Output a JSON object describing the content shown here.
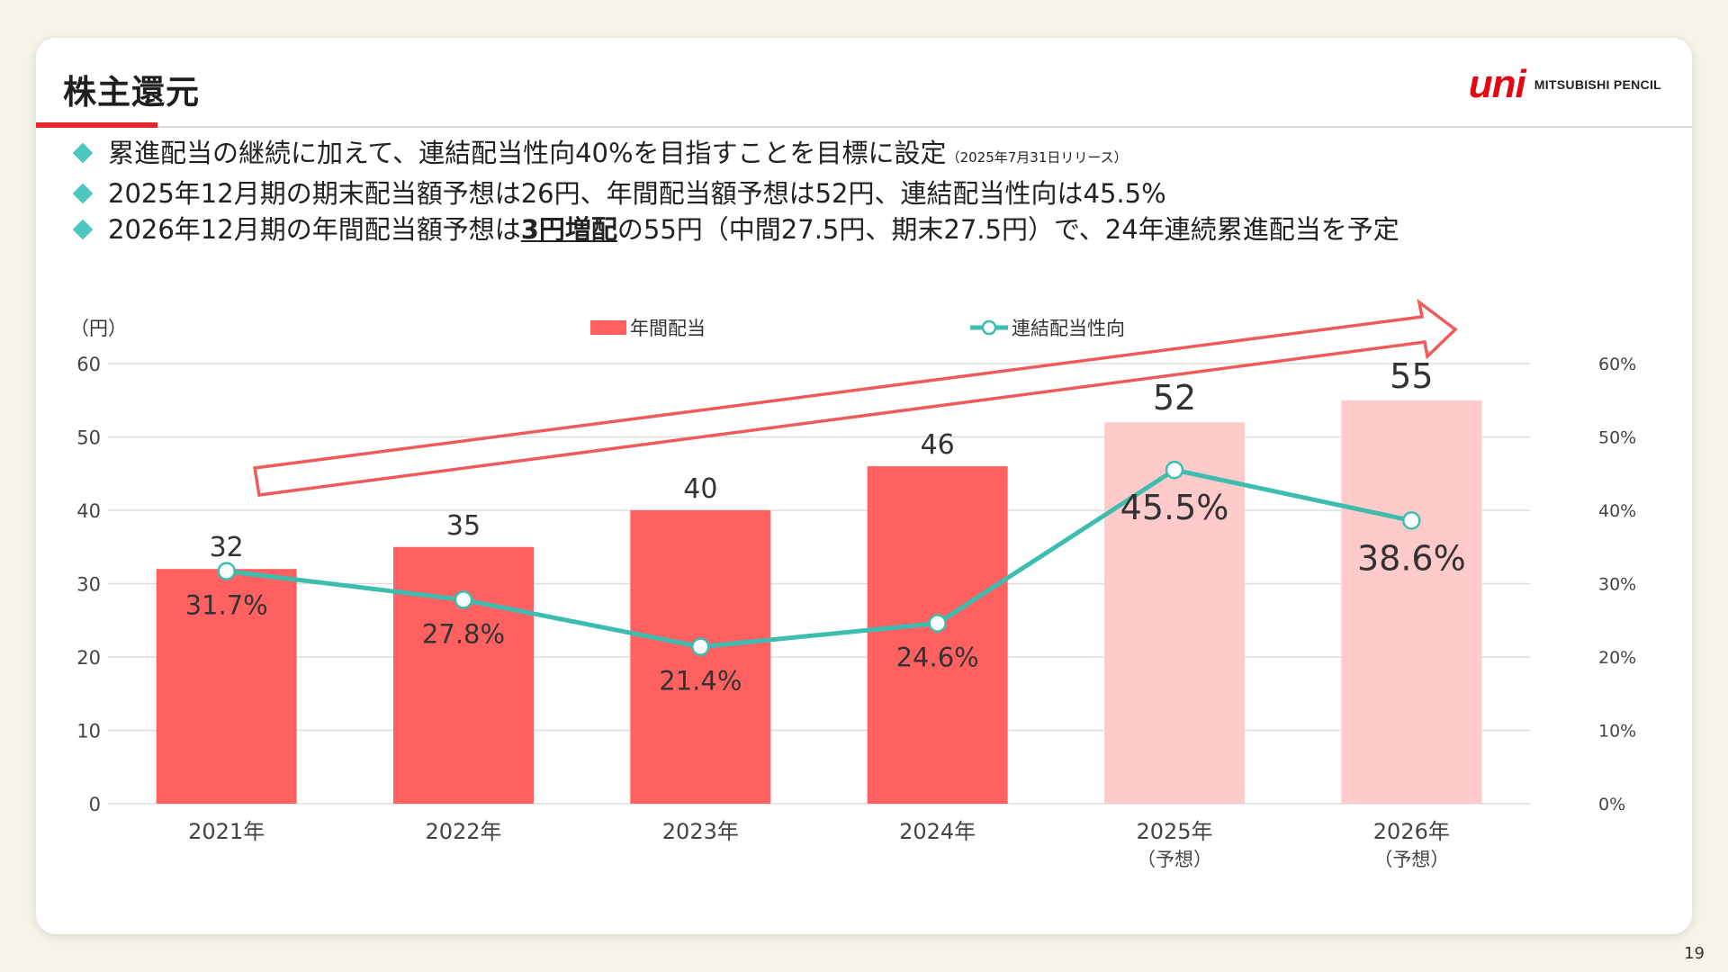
{
  "slide": {
    "title": "株主還元",
    "page_number": "19",
    "logo": {
      "mark": "uni",
      "text": "MITSUBISHI PENCIL",
      "color": "#e30613"
    },
    "bullets": [
      {
        "parts": [
          {
            "text": "累進配当の継続に加えて、連結配当性向40%を目指すことを目標に設定",
            "style": "normal"
          },
          {
            "text": "（2025年7月31日リリース）",
            "style": "small"
          }
        ]
      },
      {
        "parts": [
          {
            "text": "2025年12月期の期末配当額予想は26円、年間配当額予想は52円、連結配当性向は45.5%",
            "style": "normal"
          }
        ]
      },
      {
        "parts": [
          {
            "text": "2026年12月期の年間配当額予想は",
            "style": "normal"
          },
          {
            "text": "3円増配",
            "style": "emph"
          },
          {
            "text": "の55円（中間27.5円、期末27.5円）で、24年連続累進配当を予定",
            "style": "normal"
          }
        ]
      }
    ]
  },
  "colors": {
    "bar_actual": "#ff6161",
    "bar_forecast": "#ffcaca",
    "line": "#3dbcb0",
    "arrow": "#ef5b5b",
    "grid": "#dedede",
    "bullet": "#4cc7c0",
    "accent": "#e8262a"
  },
  "chart_data": {
    "type": "bar",
    "categories": [
      [
        "2021年"
      ],
      [
        "2022年"
      ],
      [
        "2023年"
      ],
      [
        "2024年"
      ],
      [
        "2025年",
        "（予想）"
      ],
      [
        "2026年",
        "（予想）"
      ]
    ],
    "forecast": [
      false,
      false,
      false,
      false,
      true,
      true
    ],
    "y_left_label": "（円）",
    "y_left_ticks": [
      "0",
      "10",
      "20",
      "30",
      "40",
      "50",
      "60"
    ],
    "y_right_ticks": [
      "0%",
      "10%",
      "20%",
      "30%",
      "40%",
      "50%",
      "60%"
    ],
    "ylim_left": [
      0,
      60
    ],
    "ylim_right": [
      0,
      60
    ],
    "grid": true,
    "legend_position": "top-center",
    "series": [
      {
        "name": "年間配当",
        "type": "bar",
        "axis": "left",
        "values": [
          32,
          35,
          40,
          46,
          52,
          55
        ],
        "labels": [
          "32",
          "35",
          "40",
          "46",
          "52",
          "55"
        ]
      },
      {
        "name": "連結配当性向",
        "type": "line",
        "axis": "right",
        "values": [
          31.7,
          27.8,
          21.4,
          24.6,
          45.5,
          38.6
        ],
        "labels": [
          "31.7%",
          "27.8%",
          "21.4%",
          "24.6%",
          "45.5%",
          "38.6%"
        ]
      }
    ],
    "annotations": [
      {
        "type": "trend-arrow",
        "direction": "up-right"
      }
    ]
  }
}
